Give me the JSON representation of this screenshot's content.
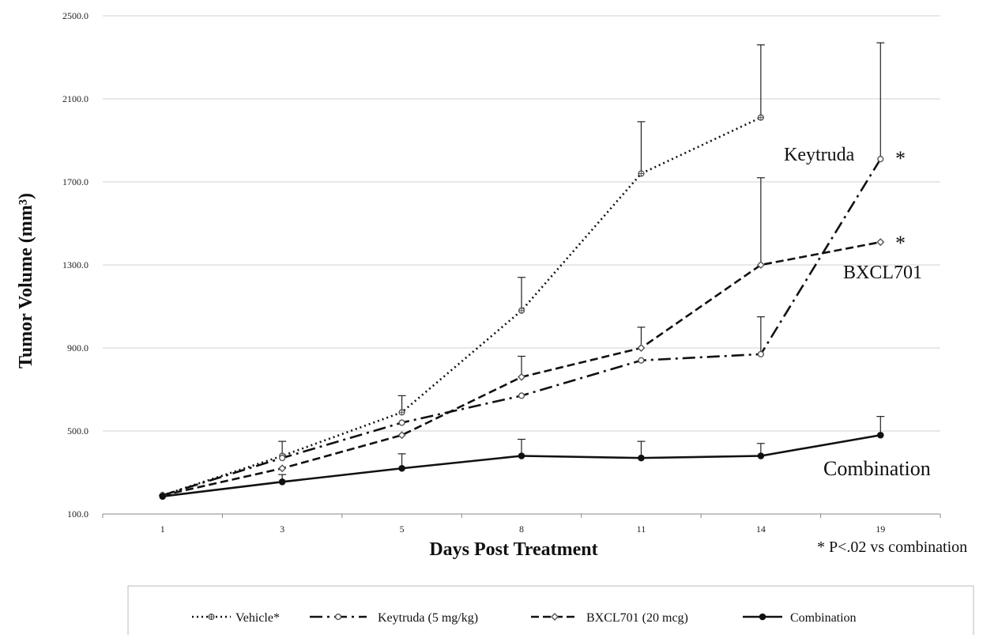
{
  "chart_data": {
    "type": "line",
    "x_categories": [
      "1",
      "3",
      "5",
      "8",
      "11",
      "14",
      "19"
    ],
    "xlabel": "Days Post Treatment",
    "ylabel": "Tumor Volume  (mm³)",
    "ylim": [
      100,
      2500
    ],
    "y_ticks": [
      "100.0",
      "500.0",
      "900.0",
      "1300.0",
      "1700.0",
      "2100.0",
      "2500.0"
    ],
    "grid": "horizontal",
    "legend_position": "bottom",
    "series": [
      {
        "name": "Vehicle*",
        "style": "dotted",
        "marker": "star",
        "values": [
          190,
          380,
          590,
          1080,
          1740,
          2010,
          null
        ],
        "error_upper": [
          null,
          450,
          670,
          1240,
          1990,
          2360,
          null
        ]
      },
      {
        "name": "Keytruda (5 mg/kg)",
        "style": "dash-dot",
        "marker": "circle-open",
        "values": [
          190,
          370,
          540,
          670,
          840,
          870,
          1810
        ],
        "error_upper": [
          null,
          null,
          null,
          null,
          null,
          1050,
          2370
        ]
      },
      {
        "name": "BXCL701 (20 mcg)",
        "style": "dashed",
        "marker": "diamond-open",
        "values": [
          190,
          320,
          480,
          760,
          900,
          1300,
          1410
        ],
        "error_upper": [
          null,
          null,
          null,
          860,
          1000,
          1720,
          null
        ]
      },
      {
        "name": "Combination",
        "style": "solid",
        "marker": "circle-filled",
        "values": [
          185,
          255,
          320,
          380,
          370,
          380,
          480
        ],
        "error_upper": [
          null,
          290,
          390,
          460,
          450,
          440,
          570
        ]
      }
    ],
    "annotations": {
      "keytruda_label": "Keytruda",
      "keytruda_star": "*",
      "bxcl_label": "BXCL701",
      "bxcl_star": "*",
      "combination_label": "Combination",
      "footnote": "* P<.02 vs combination"
    }
  }
}
